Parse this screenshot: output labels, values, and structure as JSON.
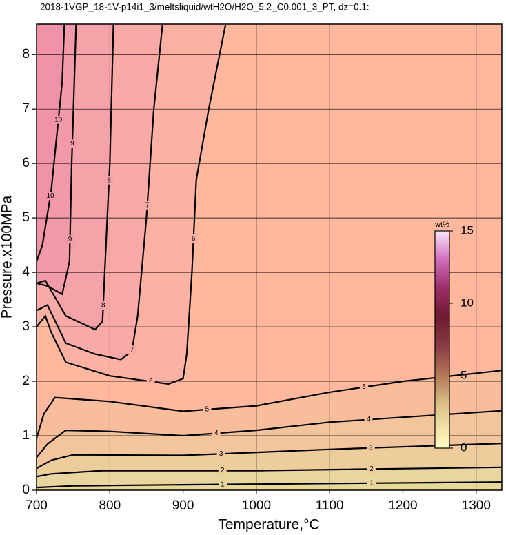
{
  "chart_data": {
    "type": "contour",
    "title": "2018-1VGP_18-1V-p14i1_3/meltsliquid/wtH2O/H2O_5.2_C0.001_3_PT, dz=0.1:",
    "x_label": "Temperature,°C",
    "y_label": "Pressure,x100MPa",
    "xlim": [
      700,
      1335
    ],
    "ylim": [
      0,
      8.56
    ],
    "xticks": [
      700,
      800,
      900,
      1000,
      1100,
      1200,
      1300
    ],
    "yticks": [
      0,
      1,
      2,
      3,
      4,
      5,
      6,
      7,
      8
    ],
    "grid": true,
    "base_color": "#e6d99a",
    "contours": [
      {
        "level": 1,
        "color": "#e9d59e",
        "x": [
          700,
          750,
          900,
          1335
        ],
        "y": [
          0.05,
          0.08,
          0.1,
          0.15
        ]
      },
      {
        "level": 2,
        "color": "#edcd9c",
        "x": [
          700,
          720,
          790,
          1000,
          1335
        ],
        "y": [
          0.25,
          0.3,
          0.36,
          0.36,
          0.42
        ]
      },
      {
        "level": 3,
        "color": "#f2c59c",
        "x": [
          700,
          720,
          750,
          900,
          1100,
          1335
        ],
        "y": [
          0.4,
          0.55,
          0.65,
          0.64,
          0.75,
          0.86
        ]
      },
      {
        "level": 4,
        "color": "#f8be9c",
        "x": [
          700,
          715,
          740,
          800,
          900,
          1000,
          1100,
          1335
        ],
        "y": [
          0.6,
          0.85,
          1.1,
          1.08,
          1.0,
          1.1,
          1.25,
          1.46
        ]
      },
      {
        "level": 5,
        "color": "#ffb89e",
        "x": [
          700,
          710,
          725,
          800,
          900,
          1000,
          1100,
          1200,
          1335
        ],
        "y": [
          0.95,
          1.4,
          1.7,
          1.63,
          1.45,
          1.55,
          1.8,
          2.0,
          2.2
        ]
      },
      {
        "level": 6,
        "color": "#fcb1a2",
        "x": [
          958,
          935,
          918,
          912,
          905,
          900,
          880,
          800,
          740,
          720,
          712,
          700
        ],
        "y": [
          8.56,
          7,
          5.7,
          4,
          2.5,
          2.05,
          1.95,
          2.1,
          2.35,
          2.9,
          3.2,
          3.0
        ]
      },
      {
        "level": 7,
        "color": "#f9aaa6",
        "x": [
          872,
          860,
          850,
          838,
          830,
          815,
          780,
          740,
          715,
          700
        ],
        "y": [
          8.56,
          7,
          5,
          3.2,
          2.55,
          2.4,
          2.5,
          2.7,
          3.4,
          3.3
        ]
      },
      {
        "level": 8,
        "color": "#f6a2a9",
        "x": [
          805,
          800,
          793,
          790,
          780,
          740,
          712,
          700
        ],
        "y": [
          8.56,
          6,
          4,
          3.1,
          2.95,
          3.2,
          3.85,
          3.8
        ]
      },
      {
        "level": 9,
        "color": "#f39aaa",
        "x": [
          754,
          748,
          745,
          735,
          715,
          700
        ],
        "y": [
          8.56,
          6,
          4.2,
          3.6,
          3.75,
          3.8
        ]
      },
      {
        "level": 10,
        "color": "#ef92aa",
        "x": [
          738,
          735,
          720,
          708,
          700
        ],
        "y": [
          8.56,
          7.5,
          5.5,
          4.5,
          4.2
        ]
      }
    ],
    "colorbar": {
      "label": "wt%",
      "lim": [
        0,
        15
      ],
      "ticks": [
        0,
        5,
        10,
        15
      ],
      "stops": [
        {
          "value": 0,
          "color": "#ffffc4"
        },
        {
          "value": 3,
          "color": "#dcc088"
        },
        {
          "value": 5,
          "color": "#b47a58"
        },
        {
          "value": 7,
          "color": "#8a3c44"
        },
        {
          "value": 9,
          "color": "#6e1a30"
        },
        {
          "value": 11,
          "color": "#9a2c66"
        },
        {
          "value": 13,
          "color": "#cf6cbc"
        },
        {
          "value": 15,
          "color": "#fbe6fb"
        }
      ]
    }
  }
}
